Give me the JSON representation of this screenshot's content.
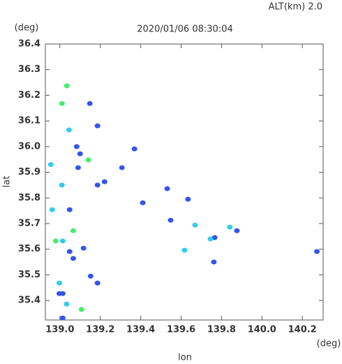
{
  "chart_data": {
    "type": "scatter",
    "title": "2020/01/06 08:30:04",
    "subtitle": "ALT(km) 2.0",
    "x_label": "lon",
    "y_label": "lat",
    "x_unit": "(deg)",
    "y_unit": "(deg)",
    "xlim": [
      138.928,
      140.303
    ],
    "ylim": [
      35.324,
      36.4
    ],
    "xticks": [
      {
        "value": 139,
        "label": "139.0"
      },
      139.2,
      139.4,
      139.6,
      139.8,
      {
        "value": 140,
        "label": "140.0"
      },
      140.2
    ],
    "yticks": [
      36.4,
      36.3,
      36.2,
      36.1,
      {
        "value": 36,
        "label": "36.0"
      },
      35.9,
      35.8,
      35.7,
      35.6,
      35.5,
      35.4
    ],
    "series": [
      {
        "color": "#3355ee",
        "x": [
          138.997,
          139.014,
          139.152,
          140.272,
          139.766,
          139.148,
          139.083,
          139.1,
          139.186,
          139.369,
          139.307,
          139.41,
          139.634,
          139.531,
          139.548,
          139.876,
          139.048,
          139.048,
          139.117,
          139.066,
          139.186,
          139.221,
          139.09,
          139.762,
          139.186,
          139.014
        ],
        "y": [
          35.427,
          35.332,
          35.495,
          35.591,
          35.645,
          36.168,
          36.0,
          35.972,
          36.081,
          35.991,
          35.918,
          35.781,
          35.795,
          35.836,
          35.713,
          35.672,
          35.754,
          35.591,
          35.604,
          35.564,
          35.85,
          35.863,
          35.918,
          35.55,
          35.468,
          35.427
        ]
      },
      {
        "color": "#33ccee",
        "x": [
          138.962,
          139.014,
          138.997,
          139.045,
          139.01,
          138.955,
          139.669,
          139.745,
          139.841,
          139.617,
          139.033
        ],
        "y": [
          35.754,
          35.632,
          35.468,
          36.065,
          35.85,
          35.93,
          35.694,
          35.64,
          35.686,
          35.596,
          35.386
        ]
      },
      {
        "color": "#44ee66",
        "x": [
          139.034,
          139.01,
          139.066,
          138.979,
          139.107,
          139.141
        ],
        "y": [
          36.237,
          36.168,
          35.672,
          35.632,
          35.365,
          35.948
        ]
      }
    ]
  }
}
